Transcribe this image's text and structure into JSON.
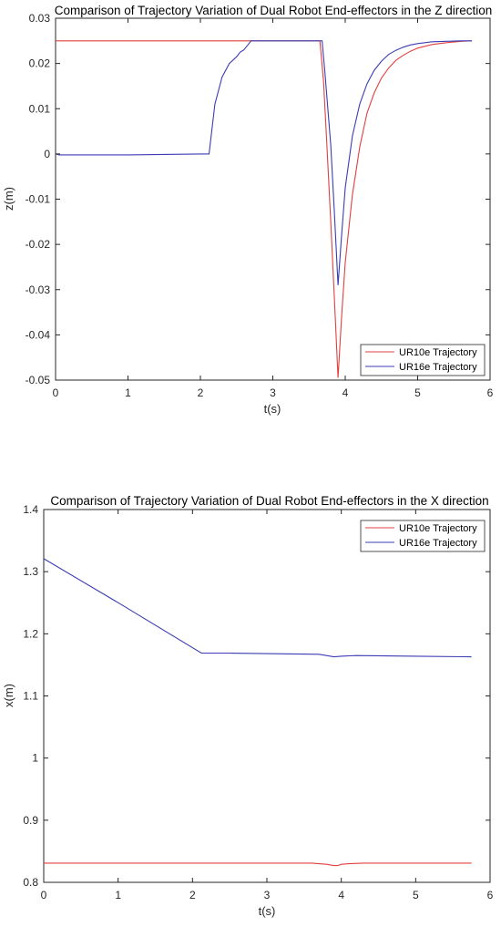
{
  "chart_data": [
    {
      "type": "line",
      "title": "Comparison of Trajectory Variation of Dual Robot End-effectors in the Z direction",
      "xlabel": "t(s)",
      "ylabel": "z(m)",
      "xlim": [
        0,
        6
      ],
      "ylim": [
        -0.05,
        0.03
      ],
      "xticks": [
        0,
        1,
        2,
        3,
        4,
        5,
        6
      ],
      "yticks": [
        -0.05,
        -0.04,
        -0.03,
        -0.02,
        -0.01,
        0,
        0.01,
        0.02,
        0.03
      ],
      "xtick_labels": [
        "0",
        "1",
        "2",
        "3",
        "4",
        "5",
        "6"
      ],
      "ytick_labels": [
        "-0.05",
        "-0.04",
        "-0.03",
        "-0.02",
        "-0.01",
        "0",
        "0.01",
        "0.02",
        "0.03"
      ],
      "grid": false,
      "legend": "bottom-right",
      "series": [
        {
          "name": "UR10e Trajectory",
          "color": "#e04040",
          "x": [
            0,
            1,
            2,
            3,
            3.65,
            3.7,
            3.75,
            3.8,
            3.85,
            3.9,
            3.95,
            4.0,
            4.1,
            4.2,
            4.3,
            4.4,
            4.5,
            4.6,
            4.7,
            4.8,
            4.9,
            5.0,
            5.2,
            5.4,
            5.6,
            5.75
          ],
          "y": [
            0.025,
            0.025,
            0.025,
            0.025,
            0.025,
            0.016,
            0.001,
            -0.015,
            -0.032,
            -0.0495,
            -0.036,
            -0.024,
            -0.009,
            0.0015,
            0.009,
            0.0135,
            0.0168,
            0.019,
            0.0207,
            0.0218,
            0.0227,
            0.0234,
            0.0242,
            0.0246,
            0.0249,
            0.025
          ]
        },
        {
          "name": "UR16e Trajectory",
          "color": "#3c3cb4",
          "x": [
            0,
            0.05,
            0.5,
            1,
            1.5,
            2,
            2.12,
            2.2,
            2.3,
            2.4,
            2.5,
            2.55,
            2.6,
            2.65,
            2.7,
            3,
            3.5,
            3.68,
            3.72,
            3.8,
            3.85,
            3.9,
            3.95,
            4.0,
            4.1,
            4.2,
            4.3,
            4.4,
            4.5,
            4.6,
            4.7,
            4.8,
            4.9,
            5.0,
            5.2,
            5.4,
            5.6,
            5.75
          ],
          "y": [
            0,
            -0.0002,
            -0.0002,
            -0.0002,
            -0.0001,
            0,
            0,
            0.011,
            0.017,
            0.02,
            0.0215,
            0.0225,
            0.023,
            0.024,
            0.025,
            0.025,
            0.025,
            0.025,
            0.018,
            0.002,
            -0.013,
            -0.029,
            -0.018,
            -0.0075,
            0.004,
            0.011,
            0.0155,
            0.0185,
            0.0205,
            0.022,
            0.0229,
            0.0236,
            0.0241,
            0.0244,
            0.0248,
            0.0249,
            0.025,
            0.025
          ]
        }
      ]
    },
    {
      "type": "line",
      "title": "Comparison of Trajectory Variation of Dual Robot End-effectors in the X direction",
      "xlabel": "t(s)",
      "ylabel": "x(m)",
      "xlim": [
        0,
        6
      ],
      "ylim": [
        0.8,
        1.4
      ],
      "xticks": [
        0,
        1,
        2,
        3,
        4,
        5,
        6
      ],
      "yticks": [
        0.8,
        0.9,
        1.0,
        1.1,
        1.2,
        1.3,
        1.4
      ],
      "xtick_labels": [
        "0",
        "1",
        "2",
        "3",
        "4",
        "5",
        "6"
      ],
      "ytick_labels": [
        "0.8",
        "0.9",
        "1",
        "1.1",
        "1.2",
        "1.3",
        "1.4"
      ],
      "grid": false,
      "legend": "top-right",
      "series": [
        {
          "name": "UR10e Trajectory",
          "color": "#e04040",
          "x": [
            0,
            1,
            2,
            3,
            3.6,
            3.7,
            3.8,
            3.9,
            3.95,
            4.0,
            4.1,
            4.3,
            5,
            5.75
          ],
          "y": [
            0.831,
            0.831,
            0.831,
            0.831,
            0.831,
            0.83,
            0.829,
            0.827,
            0.827,
            0.829,
            0.83,
            0.831,
            0.831,
            0.831
          ]
        },
        {
          "name": "UR16e Trajectory",
          "color": "#3c3cb4",
          "x": [
            0,
            1,
            2.12,
            2.5,
            3,
            3.7,
            3.9,
            4.0,
            4.2,
            5,
            5.75
          ],
          "y": [
            1.321,
            1.25,
            1.169,
            1.169,
            1.168,
            1.167,
            1.163,
            1.164,
            1.165,
            1.164,
            1.163
          ]
        }
      ]
    }
  ]
}
